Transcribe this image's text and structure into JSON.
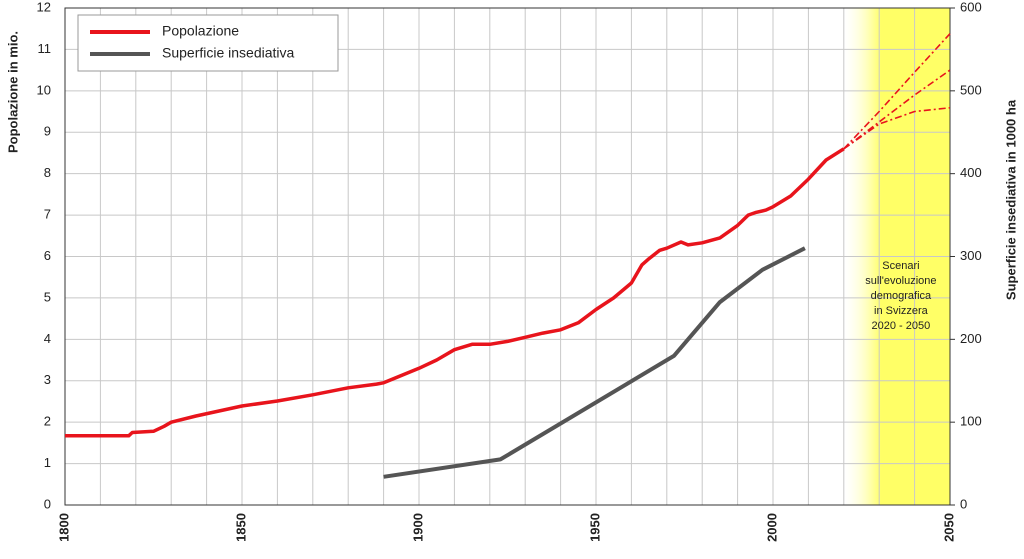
{
  "chart_data": {
    "type": "line",
    "ylabel": "Popolazione in mio.",
    "y2label": "Superficie insediativa in 1000 ha",
    "xlim": [
      1800,
      2050
    ],
    "xticks": [
      1800,
      1850,
      1900,
      1950,
      2000,
      2050
    ],
    "x_gridlines": [
      1810,
      1820,
      1830,
      1840,
      1860,
      1870,
      1880,
      1890,
      1910,
      1920,
      1930,
      1940,
      1960,
      1970,
      1980,
      1990,
      2010,
      2020,
      2030,
      2040
    ],
    "ylim": [
      0,
      12
    ],
    "yticks": [
      0,
      1,
      2,
      3,
      4,
      5,
      6,
      7,
      8,
      9,
      10,
      11,
      12
    ],
    "y2lim": [
      0,
      600
    ],
    "y2ticks": [
      0,
      100,
      200,
      300,
      400,
      500,
      600
    ],
    "grid": true,
    "legend": "top-left",
    "shaded_region": {
      "x": [
        2020,
        2050
      ],
      "color": "#ffff66",
      "label": [
        "Scenari",
        "sull'evoluzione",
        "demografica",
        "in Svizzera",
        "2020 - 2050"
      ]
    },
    "series": [
      {
        "name": "Popolazione",
        "color": "#e8141c",
        "axis": "y",
        "x": [
          1800,
          1818,
          1819,
          1825,
          1828,
          1830,
          1837,
          1850,
          1860,
          1870,
          1880,
          1888,
          1890,
          1900,
          1905,
          1910,
          1915,
          1920,
          1925,
          1930,
          1935,
          1940,
          1945,
          1950,
          1955,
          1960,
          1963,
          1965,
          1968,
          1970,
          1974,
          1976,
          1980,
          1985,
          1990,
          1993,
          1995,
          1998,
          2000,
          2005,
          2010,
          2015,
          2020
        ],
        "values": [
          1.67,
          1.67,
          1.75,
          1.78,
          1.9,
          2.0,
          2.15,
          2.39,
          2.51,
          2.66,
          2.83,
          2.92,
          2.95,
          3.3,
          3.5,
          3.75,
          3.88,
          3.88,
          3.95,
          4.05,
          4.15,
          4.23,
          4.4,
          4.72,
          5.0,
          5.36,
          5.8,
          5.95,
          6.15,
          6.2,
          6.35,
          6.28,
          6.33,
          6.45,
          6.75,
          7.0,
          7.06,
          7.12,
          7.2,
          7.46,
          7.87,
          8.33,
          8.6
        ]
      },
      {
        "name": "Superficie insediativa",
        "color": "#555555",
        "axis": "y2",
        "x": [
          1890,
          1923,
          1972,
          1985,
          1997,
          2009
        ],
        "values": [
          34,
          55,
          180,
          245,
          284,
          310
        ]
      },
      {
        "color": "#e8141c",
        "axis": "y",
        "dashed": true,
        "x": [
          2020,
          2030,
          2040,
          2050
        ],
        "values": [
          8.6,
          9.5,
          10.45,
          11.38
        ]
      },
      {
        "color": "#e8141c",
        "axis": "y",
        "dashed": true,
        "x": [
          2020,
          2030,
          2040,
          2050
        ],
        "values": [
          8.6,
          9.25,
          9.9,
          10.5
        ]
      },
      {
        "color": "#e8141c",
        "axis": "y",
        "dashed": true,
        "x": [
          2020,
          2030,
          2040,
          2050
        ],
        "values": [
          8.6,
          9.2,
          9.5,
          9.59
        ]
      }
    ]
  }
}
